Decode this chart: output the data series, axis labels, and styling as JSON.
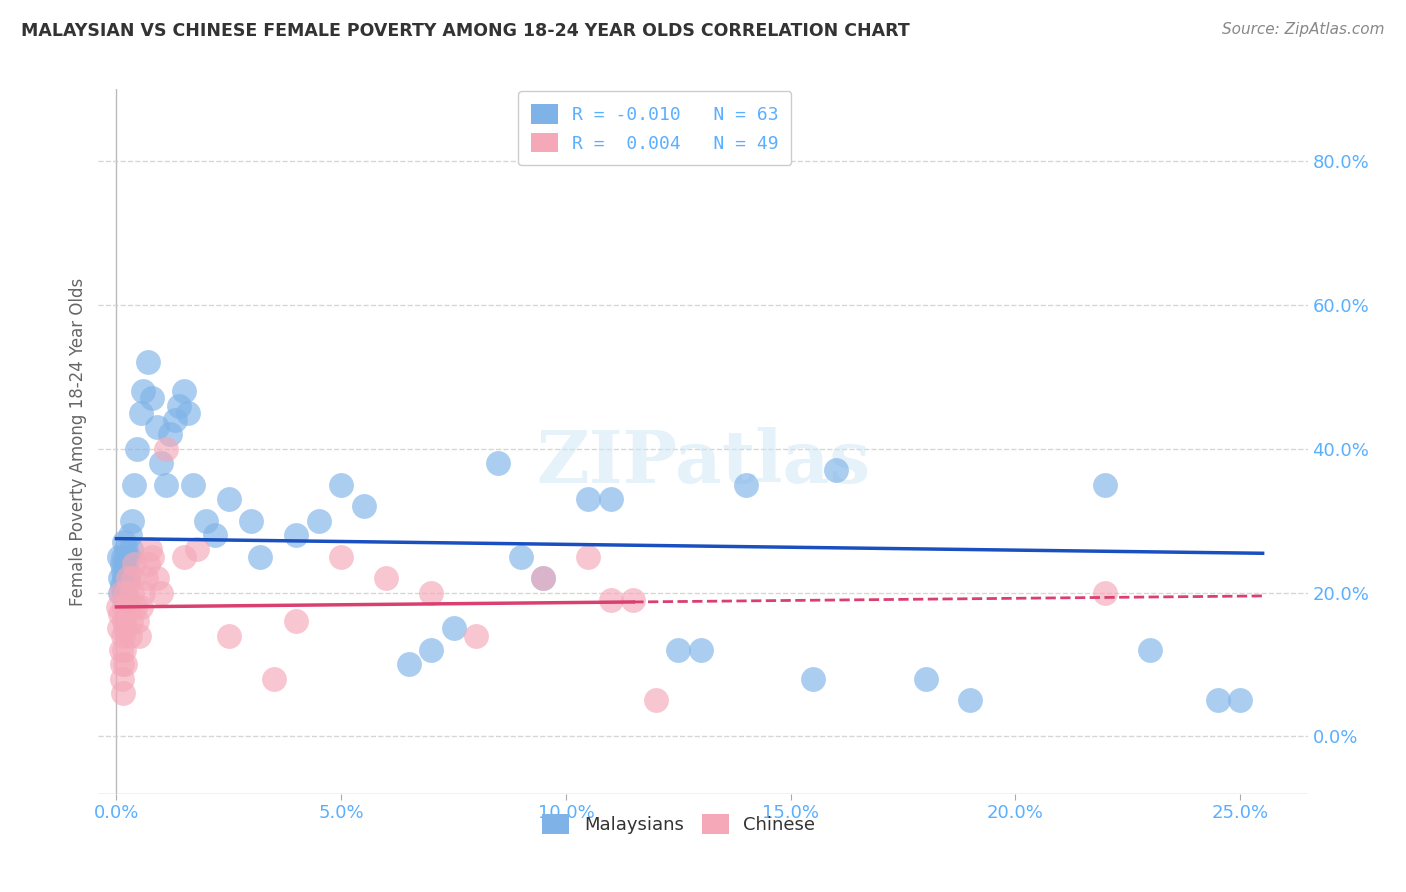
{
  "title": "MALAYSIAN VS CHINESE FEMALE POVERTY AMONG 18-24 YEAR OLDS CORRELATION CHART",
  "source": "Source: ZipAtlas.com",
  "ylabel": "Female Poverty Among 18-24 Year Olds",
  "legend_mal": "R = -0.010   N = 63",
  "legend_chi": "R =  0.004   N = 49",
  "color_malaysian": "#7FB3E8",
  "color_chinese": "#F4A8B8",
  "color_trend_malaysian": "#1A4FBF",
  "color_trend_chinese": "#D94070",
  "color_grid": "#CCCCCC",
  "color_axis": "#5AAFFF",
  "color_title": "#333333",
  "color_source": "#888888",
  "ytick_label_color": "#5AAFFF",
  "xtick_label_color": "#5AAFFF",
  "xlim_min": -0.4,
  "xlim_max": 26.5,
  "ylim_min": -8,
  "ylim_max": 90,
  "xtick_vals": [
    0,
    5,
    10,
    15,
    20,
    25
  ],
  "ytick_vals": [
    0,
    20,
    40,
    60,
    80
  ],
  "mal_trend_y_intercept": 27.5,
  "mal_trend_slope": -0.08,
  "mal_trend_xmin": 0,
  "mal_trend_xmax": 25.5,
  "chi_trend_y_intercept": 18.0,
  "chi_trend_slope": 0.06,
  "chi_trend_solid_xmax": 11.5,
  "chi_trend_xmax": 25.5,
  "malaysian_x": [
    0.05,
    0.07,
    0.09,
    0.12,
    0.13,
    0.14,
    0.15,
    0.16,
    0.17,
    0.18,
    0.19,
    0.2,
    0.21,
    0.22,
    0.23,
    0.25,
    0.27,
    0.3,
    0.32,
    0.35,
    0.4,
    0.45,
    0.55,
    0.6,
    0.7,
    0.8,
    0.9,
    1.0,
    1.1,
    1.2,
    1.3,
    1.4,
    1.5,
    1.6,
    1.7,
    2.0,
    2.2,
    2.5,
    3.0,
    3.2,
    4.0,
    4.5,
    5.0,
    5.5,
    6.5,
    7.0,
    7.5,
    8.5,
    9.0,
    9.5,
    10.5,
    11.0,
    12.5,
    13.0,
    14.0,
    15.5,
    16.0,
    18.0,
    19.0,
    22.0,
    23.0,
    24.5,
    25.0
  ],
  "malaysian_y": [
    25,
    22,
    20,
    24,
    21,
    25,
    23,
    27,
    20,
    22,
    19,
    24,
    26,
    25,
    23,
    22,
    25,
    28,
    26,
    30,
    35,
    40,
    45,
    48,
    52,
    47,
    43,
    38,
    35,
    42,
    44,
    46,
    48,
    45,
    35,
    30,
    28,
    33,
    30,
    25,
    28,
    30,
    35,
    32,
    10,
    12,
    15,
    38,
    25,
    22,
    33,
    33,
    12,
    12,
    35,
    8,
    37,
    8,
    5,
    35,
    12,
    5,
    5
  ],
  "chinese_x": [
    0.04,
    0.06,
    0.08,
    0.1,
    0.11,
    0.12,
    0.13,
    0.14,
    0.15,
    0.16,
    0.17,
    0.18,
    0.19,
    0.2,
    0.22,
    0.25,
    0.27,
    0.3,
    0.32,
    0.35,
    0.38,
    0.4,
    0.42,
    0.45,
    0.5,
    0.55,
    0.6,
    0.65,
    0.7,
    0.75,
    0.8,
    0.9,
    1.0,
    1.1,
    1.5,
    1.8,
    2.5,
    3.5,
    4.0,
    5.0,
    6.0,
    7.0,
    8.0,
    9.5,
    10.5,
    11.0,
    11.5,
    12.0,
    22.0
  ],
  "chinese_y": [
    18,
    15,
    17,
    20,
    12,
    10,
    8,
    6,
    14,
    16,
    18,
    12,
    10,
    15,
    20,
    22,
    18,
    14,
    16,
    20,
    22,
    24,
    18,
    16,
    14,
    18,
    20,
    22,
    24,
    26,
    25,
    22,
    20,
    40,
    25,
    26,
    14,
    8,
    16,
    25,
    22,
    20,
    14,
    22,
    25,
    19,
    19,
    5,
    20
  ]
}
